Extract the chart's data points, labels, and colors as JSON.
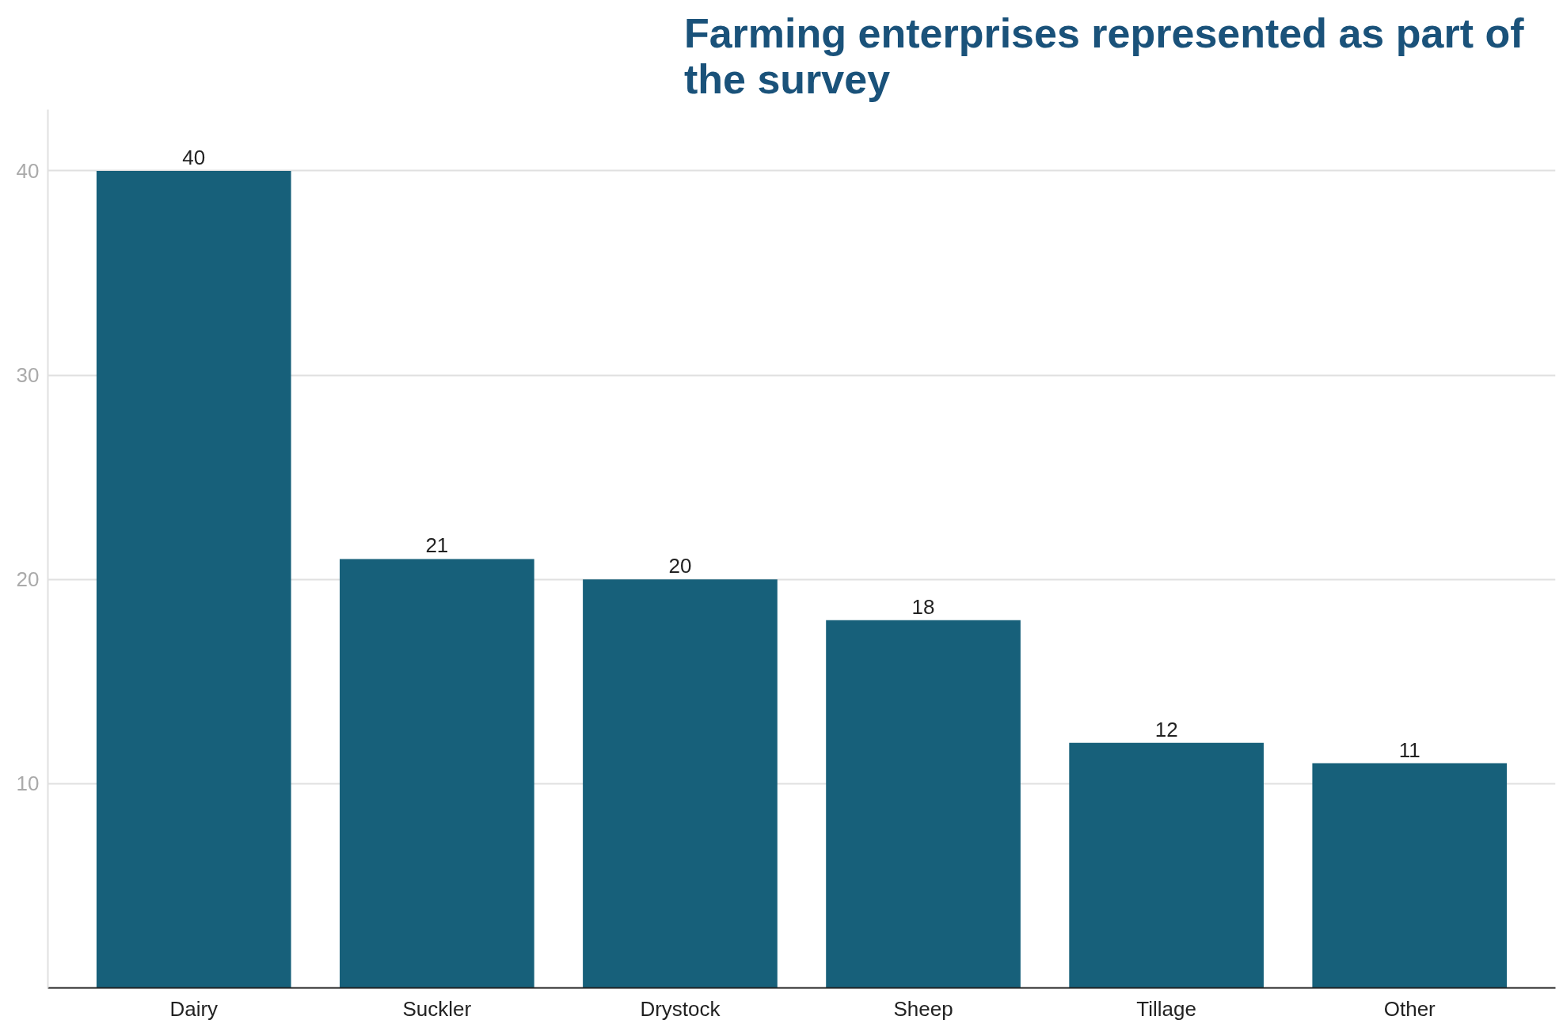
{
  "chart_data": {
    "type": "bar",
    "title": "Farming enterprises represented as part of\nthe survey",
    "categories": [
      "Dairy",
      "Suckler",
      "Drystock",
      "Sheep",
      "Tillage",
      "Other"
    ],
    "values": [
      40,
      21,
      20,
      18,
      12,
      11
    ],
    "color": "#17607a",
    "ylim": [
      0,
      43
    ],
    "yticks": [
      10,
      20,
      30,
      40
    ],
    "grid": "y",
    "data_labels": true
  }
}
